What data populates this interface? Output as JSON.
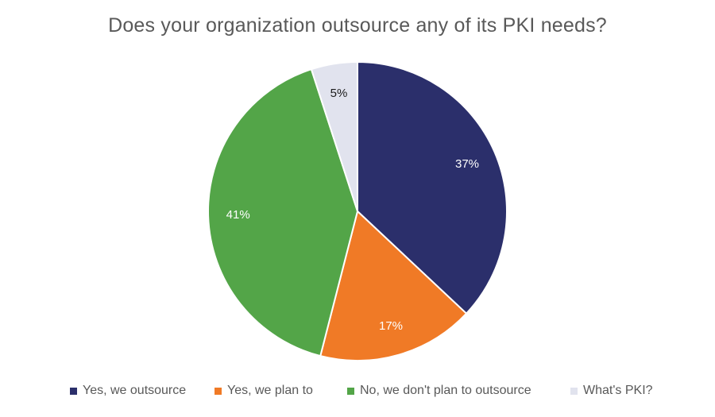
{
  "chart_data": {
    "type": "pie",
    "title": "Does your organization outsource any of its PKI needs?",
    "slices": [
      {
        "label": "Yes, we outsource",
        "value": 37,
        "display": "37%",
        "color": "#2b2f6b",
        "label_color": "#ffffff"
      },
      {
        "label": "Yes, we plan to",
        "value": 17,
        "display": "17%",
        "color": "#f07a26",
        "label_color": "#ffffff"
      },
      {
        "label": "No, we don't plan to outsource",
        "value": 41,
        "display": "41%",
        "color": "#53a548",
        "label_color": "#ffffff"
      },
      {
        "label": "What's PKI?",
        "value": 5,
        "display": "5%",
        "color": "#e1e3ee",
        "label_color": "#1a1a1a"
      }
    ],
    "legend_position": "bottom",
    "start_angle": "12 o'clock",
    "direction": "clockwise"
  }
}
